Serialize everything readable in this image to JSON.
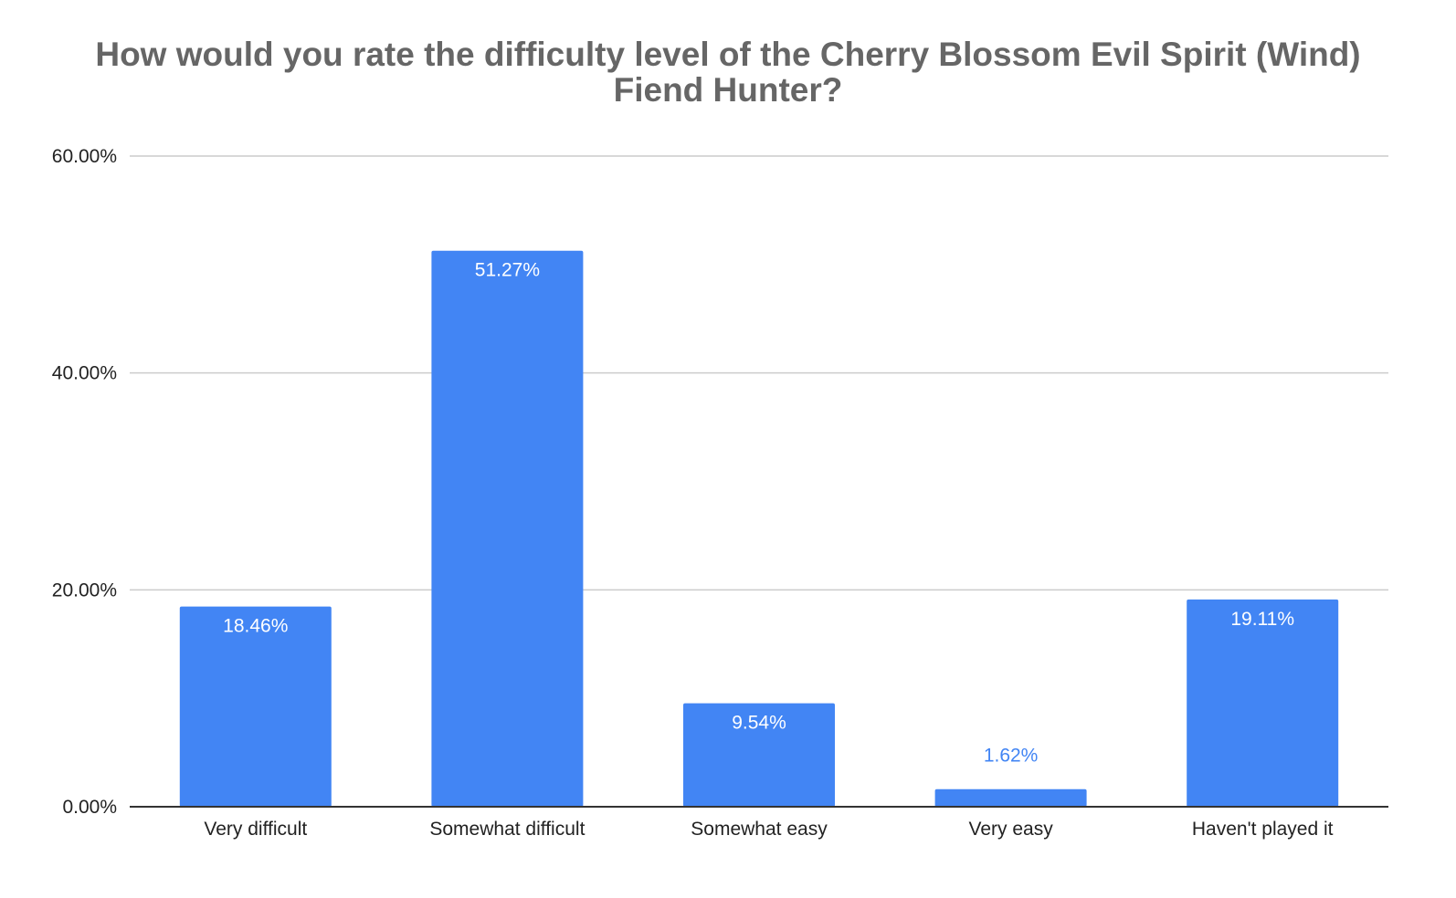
{
  "chart_data": {
    "type": "bar",
    "title": "How would you rate the difficulty level of the Cherry Blossom Evil Spirit (Wind) Fiend Hunter?",
    "xlabel": "",
    "ylabel": "",
    "categories": [
      "Very difficult",
      "Somewhat difficult",
      "Somewhat easy",
      "Very easy",
      "Haven't played it"
    ],
    "values": [
      18.46,
      51.27,
      9.54,
      1.62,
      19.11
    ],
    "data_labels": [
      "18.46%",
      "51.27%",
      "9.54%",
      "1.62%",
      "19.11%"
    ],
    "ylim": [
      0,
      60
    ],
    "yticks": [
      0,
      20,
      40,
      60
    ],
    "ytick_labels": [
      "0.00%",
      "20.00%",
      "40.00%",
      "60.00%"
    ],
    "grid": true,
    "legend": false,
    "colors": {
      "bar": "#4285f4",
      "label_inside": "#ffffff",
      "label_outside": "#4285f4",
      "grid": "#cccccc",
      "axis": "#333333",
      "title": "#666666"
    }
  }
}
